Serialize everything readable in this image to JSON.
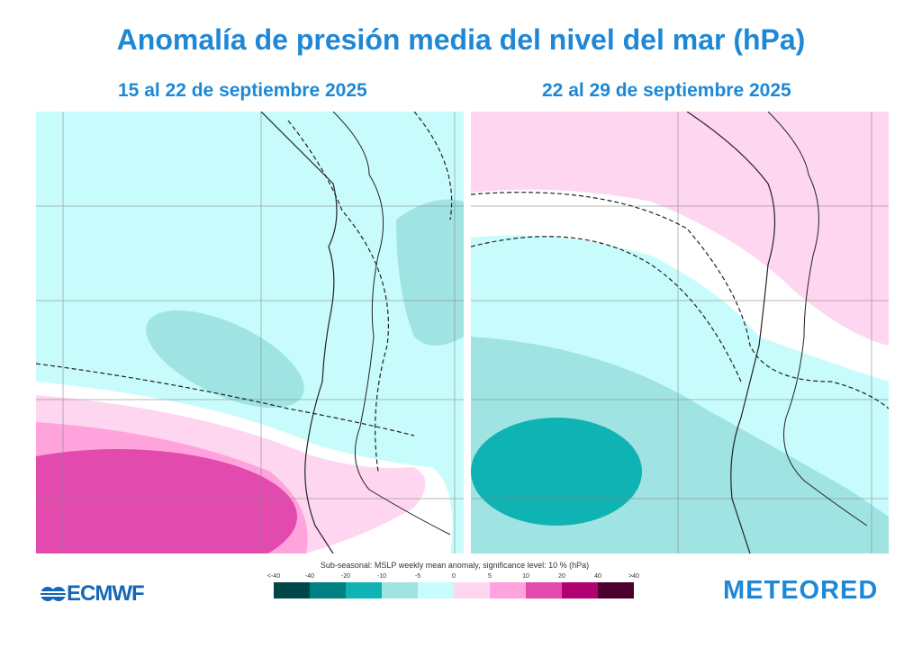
{
  "title": "Anomalía de presión media del nivel del mar (hPa)",
  "panels": [
    {
      "title": "15 al 22 de septiembre 2025"
    },
    {
      "title": "22 al 29 de septiembre 2025"
    }
  ],
  "colorbar": {
    "title": "Sub-seasonal: MSLP weekly mean anomaly, significance level: 10 % (hPa)",
    "ticks": [
      "<-40",
      "-40",
      "-20",
      "-10",
      "-5",
      "0",
      "5",
      "10",
      "20",
      "40",
      ">40"
    ],
    "colors": [
      "#00474a",
      "#008080",
      "#10b3b3",
      "#a0e3e3",
      "#c8fcfc",
      "#ffd6f0",
      "#ffa3dc",
      "#e24aad",
      "#b10072",
      "#4d002e"
    ]
  },
  "logos": {
    "left": "ECMWF",
    "right": "METEORED"
  }
}
